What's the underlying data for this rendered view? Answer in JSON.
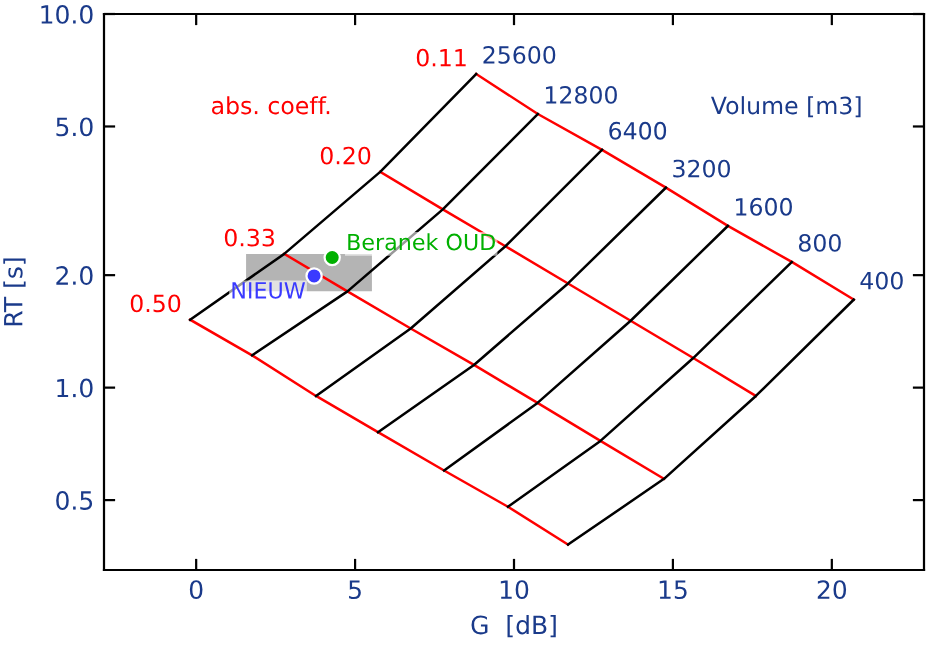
{
  "chart_data": {
    "type": "line",
    "xlabel": "G  [dB]",
    "ylabel": "RT [s]",
    "log": "y",
    "xlim": [
      -2.9,
      22.9
    ],
    "ylim": [
      0.325,
      10
    ],
    "xticks": [
      0,
      5,
      10,
      15,
      20
    ],
    "yticks": [
      0.5,
      {
        "value": 1,
        "label": "1.0"
      },
      {
        "value": 2,
        "label": "2.0"
      },
      {
        "value": 5,
        "label": "5.0"
      },
      {
        "value": 10,
        "label": "10.0"
      }
    ],
    "grid": false,
    "line_style": "solid",
    "annotations": [
      "abs. coeff.",
      "Volume [m3]"
    ],
    "series": [
      {
        "type": "area",
        "color": "#b4b4b4",
        "x": [
          1.57,
          5.53
        ],
        "values": [
          null,
          null
        ],
        "lower": [
          1.81,
          1.81
        ],
        "upper": [
          2.28,
          2.28
        ]
      },
      {
        "name": "0.50",
        "color": "#ff0000",
        "x": [
          -0.19,
          1.76,
          3.77,
          5.72,
          7.8,
          9.81,
          11.7
        ],
        "values": [
          1.52,
          1.22,
          0.95,
          0.76,
          0.6,
          0.48,
          0.38
        ]
      },
      {
        "name": "0.33",
        "color": "#ff0000",
        "x": [
          2.77,
          4.76,
          6.75,
          8.74,
          10.74,
          12.72,
          14.72
        ],
        "values": [
          2.28,
          1.81,
          1.44,
          1.15,
          0.91,
          0.72,
          0.57
        ]
      },
      {
        "name": "0.20",
        "color": "#ff0000",
        "x": [
          5.79,
          7.76,
          9.73,
          11.7,
          13.67,
          15.64,
          17.61
        ],
        "values": [
          3.78,
          3.0,
          2.39,
          1.9,
          1.51,
          1.2,
          0.95
        ]
      },
      {
        "name": "0.11",
        "color": "#ff0000",
        "x": [
          8.81,
          10.75,
          12.77,
          14.78,
          16.73,
          18.74,
          20.69
        ],
        "values": [
          6.91,
          5.4,
          4.33,
          3.43,
          2.71,
          2.17,
          1.72
        ]
      },
      {
        "name": "25600",
        "color": "#000000",
        "x": [
          -0.19,
          2.77,
          5.79,
          8.81
        ],
        "values": [
          1.52,
          2.28,
          3.78,
          6.91
        ]
      },
      {
        "name": "12800",
        "color": "#000000",
        "x": [
          1.76,
          4.76,
          7.76,
          10.75
        ],
        "values": [
          1.22,
          1.81,
          3.0,
          5.4
        ]
      },
      {
        "name": "6400",
        "color": "#000000",
        "x": [
          3.77,
          6.75,
          9.73,
          12.77
        ],
        "values": [
          0.95,
          1.44,
          2.39,
          4.33
        ]
      },
      {
        "name": "3200",
        "color": "#000000",
        "x": [
          5.72,
          8.74,
          11.7,
          14.78
        ],
        "values": [
          0.76,
          1.15,
          1.9,
          3.43
        ]
      },
      {
        "name": "1600",
        "color": "#000000",
        "x": [
          7.8,
          10.74,
          13.67,
          16.73
        ],
        "values": [
          0.6,
          0.91,
          1.51,
          2.71
        ]
      },
      {
        "name": "800",
        "color": "#000000",
        "x": [
          9.81,
          12.72,
          15.64,
          18.74
        ],
        "values": [
          0.48,
          0.72,
          1.2,
          2.17
        ]
      },
      {
        "name": "400",
        "color": "#000000",
        "x": [
          11.7,
          14.72,
          17.61,
          20.69
        ],
        "values": [
          0.38,
          0.57,
          0.95,
          1.72
        ]
      },
      {
        "type": "scatter",
        "name": "Beranek OUD",
        "color": "#00b000",
        "marker": "circle",
        "x": [
          4.28
        ],
        "values": [
          2.23
        ]
      },
      {
        "type": "scatter",
        "name": "NIEUW",
        "color": "#3a3aff",
        "marker": "circle",
        "x": [
          3.71
        ],
        "values": [
          1.99
        ]
      }
    ]
  }
}
